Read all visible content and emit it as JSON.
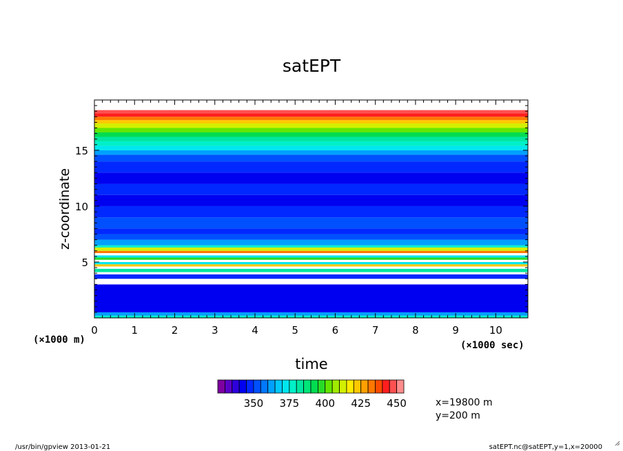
{
  "chart_data": {
    "type": "heatmap",
    "title": "satEPT",
    "xlabel": "time",
    "ylabel": "z-coordinate",
    "x_multiplier": "(×1000 sec)",
    "y_multiplier": "(×1000 m)",
    "xlim": [
      0,
      10.8
    ],
    "ylim": [
      0,
      19.5
    ],
    "x_ticks": [
      "0",
      "1",
      "2",
      "3",
      "4",
      "5",
      "6",
      "7",
      "8",
      "9",
      "10"
    ],
    "y_ticks": [
      "5",
      "10",
      "15"
    ],
    "colorbar": {
      "range": [
        325,
        450
      ],
      "step": 5,
      "tick_labels": [
        "350",
        "375",
        "400",
        "425",
        "450"
      ],
      "colors": [
        "#7d00a0",
        "#5a00c8",
        "#2d00dc",
        "#0000f0",
        "#0028ff",
        "#0050ff",
        "#0078ff",
        "#00a0ff",
        "#00c8ff",
        "#00e6f0",
        "#00f0c8",
        "#00e6a0",
        "#00e678",
        "#00dc50",
        "#28dc28",
        "#64e600",
        "#a0eb00",
        "#d2f000",
        "#ffeb00",
        "#ffc800",
        "#ffa000",
        "#ff7800",
        "#ff4b00",
        "#ff1e1e",
        "#ff5050",
        "#ff8c8c"
      ]
    },
    "bands": [
      {
        "z0": 0.0,
        "z1": 0.2,
        "value": 375
      },
      {
        "z0": 0.2,
        "z1": 0.5,
        "value": 360
      },
      {
        "z0": 0.5,
        "z1": 3.0,
        "value": 340
      },
      {
        "z0": 3.0,
        "z1": 3.5,
        "value": 450
      },
      {
        "z0": 3.5,
        "z1": 3.9,
        "value": 345
      },
      {
        "z0": 3.9,
        "z1": 4.1,
        "value": 450
      },
      {
        "z0": 4.1,
        "z1": 4.4,
        "value": 380
      },
      {
        "z0": 4.4,
        "z1": 4.6,
        "value": 450
      },
      {
        "z0": 4.6,
        "z1": 4.8,
        "value": 420
      },
      {
        "z0": 4.8,
        "z1": 5.0,
        "value": 370
      },
      {
        "z0": 5.0,
        "z1": 5.2,
        "value": 450
      },
      {
        "z0": 5.2,
        "z1": 5.4,
        "value": 395
      },
      {
        "z0": 5.4,
        "z1": 5.6,
        "value": 370
      },
      {
        "z0": 5.6,
        "z1": 5.8,
        "value": 450
      },
      {
        "z0": 5.8,
        "z1": 6.0,
        "value": 430
      },
      {
        "z0": 6.0,
        "z1": 6.3,
        "value": 410
      },
      {
        "z0": 6.3,
        "z1": 6.5,
        "value": 375
      },
      {
        "z0": 6.5,
        "z1": 7.0,
        "value": 360
      },
      {
        "z0": 7.0,
        "z1": 7.5,
        "value": 350
      },
      {
        "z0": 7.5,
        "z1": 8.0,
        "value": 345
      },
      {
        "z0": 8.0,
        "z1": 9.0,
        "value": 350
      },
      {
        "z0": 9.0,
        "z1": 10.0,
        "value": 345
      },
      {
        "z0": 10.0,
        "z1": 11.0,
        "value": 340
      },
      {
        "z0": 11.0,
        "z1": 12.0,
        "value": 345
      },
      {
        "z0": 12.0,
        "z1": 13.0,
        "value": 340
      },
      {
        "z0": 13.0,
        "z1": 14.0,
        "value": 345
      },
      {
        "z0": 14.0,
        "z1": 14.6,
        "value": 350
      },
      {
        "z0": 14.6,
        "z1": 15.0,
        "value": 360
      },
      {
        "z0": 15.0,
        "z1": 15.4,
        "value": 370
      },
      {
        "z0": 15.4,
        "z1": 15.8,
        "value": 375
      },
      {
        "z0": 15.8,
        "z1": 16.2,
        "value": 380
      },
      {
        "z0": 16.2,
        "z1": 16.6,
        "value": 390
      },
      {
        "z0": 16.6,
        "z1": 17.0,
        "value": 400
      },
      {
        "z0": 17.0,
        "z1": 17.4,
        "value": 410
      },
      {
        "z0": 17.4,
        "z1": 17.7,
        "value": 420
      },
      {
        "z0": 17.7,
        "z1": 18.0,
        "value": 430
      },
      {
        "z0": 18.0,
        "z1": 18.3,
        "value": 440
      },
      {
        "z0": 18.3,
        "z1": 18.6,
        "value": 445
      },
      {
        "z0": 18.6,
        "z1": 18.9,
        "value": 450
      }
    ]
  },
  "info": {
    "x_coord": "x=19800 m",
    "y_coord": "y=200 m"
  },
  "footer": {
    "left": "/usr/bin/gpview  2013-01-21",
    "right": "satEPT.nc@satEPT,y=1,x=20000"
  }
}
